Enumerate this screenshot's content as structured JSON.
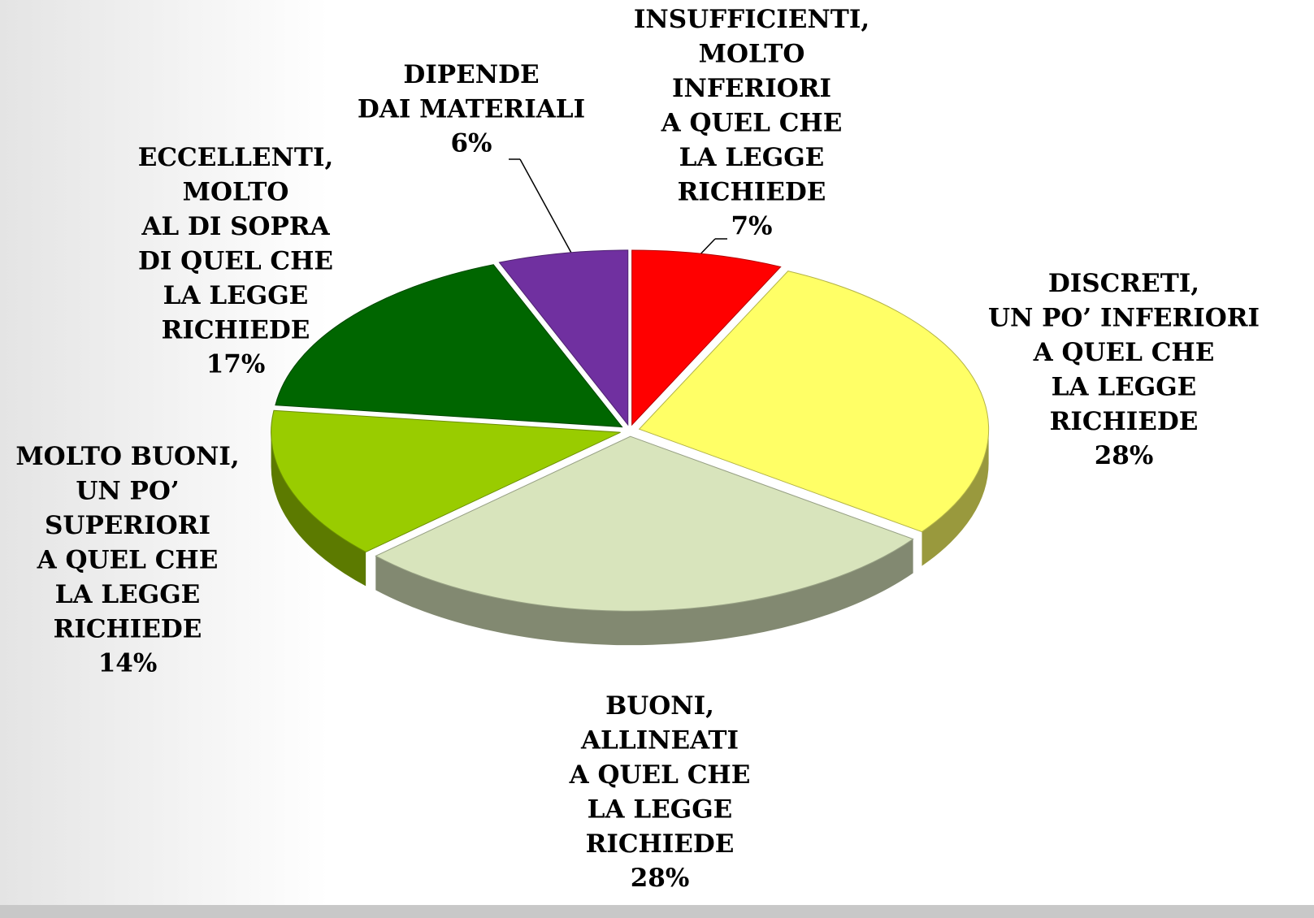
{
  "chart_data": {
    "type": "pie",
    "categories": [
      "INSUFFICIENTI,\nMOLTO\nINFERIORI\nA QUEL CHE\nLA LEGGE\nRICHIEDE",
      "DISCRETI,\nUN PO’ INFERIORI\nA QUEL CHE\nLA LEGGE\nRICHIEDE",
      "BUONI,\nALLINEATI\nA QUEL CHE\nLA LEGGE\nRICHIEDE",
      "MOLTO BUONI,\nUN PO’\nSUPERIORI\nA QUEL CHE\nLA LEGGE\nRICHIEDE",
      "ECCELLENTI,\nMOLTO\nAL DI SOPRA\nDI QUEL CHE\nLA LEGGE\nRICHIEDE",
      "DIPENDE\nDAI MATERIALI"
    ],
    "values": [
      7,
      28,
      28,
      14,
      17,
      6
    ],
    "value_labels": [
      "7%",
      "28%",
      "28%",
      "14%",
      "17%",
      "6%"
    ],
    "colors": [
      "#ff0000",
      "#ffff66",
      "#d8e4bc",
      "#99cc00",
      "#006600",
      "#7030a0"
    ]
  }
}
